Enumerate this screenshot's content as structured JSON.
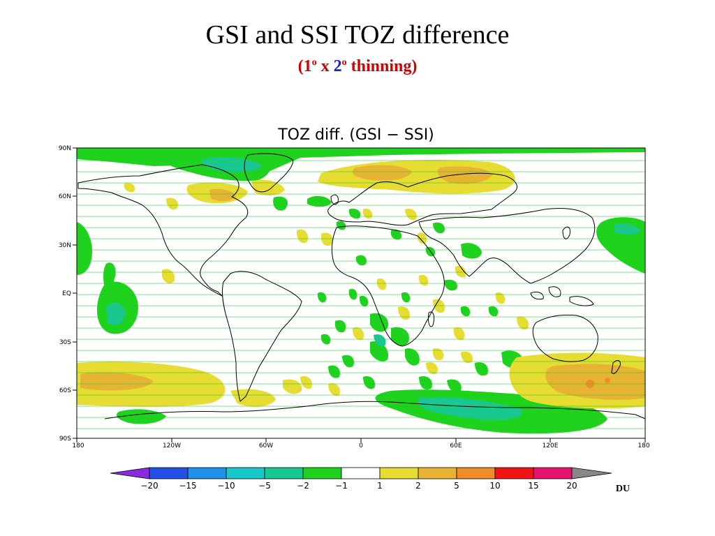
{
  "slide": {
    "title": "GSI and SSI TOZ difference",
    "subtitle": {
      "open": "(1",
      "deg1": "o",
      "x": " x ",
      "two": "2",
      "deg2": "o",
      "rest": " thinning)"
    }
  },
  "map": {
    "title": "TOZ diff. (GSI − SSI)",
    "lat_labels": [
      "90N",
      "60N",
      "30N",
      "EQ",
      "30S",
      "60S",
      "90S"
    ],
    "lon_labels": [
      "180",
      "120W",
      "60W",
      "0",
      "60E",
      "120E",
      "180"
    ]
  },
  "colorbar": {
    "labels": [
      "−20",
      "−15",
      "−10",
      "−5",
      "−2",
      "−1",
      "1",
      "2",
      "5",
      "10",
      "15",
      "20"
    ],
    "colors": [
      "#8a2be2",
      "#2450e6",
      "#1e90e6",
      "#18c8c8",
      "#18c890",
      "#1ed21e",
      "#ffffff",
      "#e6dc32",
      "#e6b432",
      "#f08c28",
      "#f01414",
      "#e6146e",
      "#888888"
    ],
    "unit": "DU"
  }
}
